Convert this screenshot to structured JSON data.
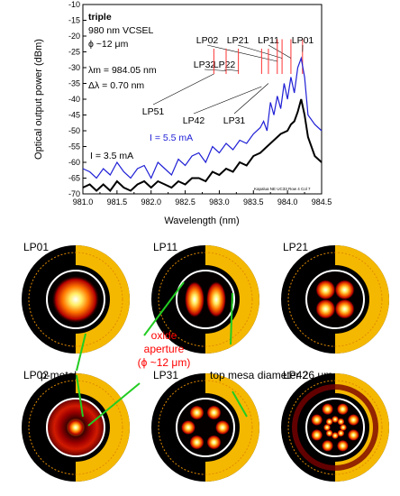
{
  "chart_data": {
    "type": "line",
    "xlabel": "Wavelength (nm)",
    "ylabel": "Optical output power (dBm)",
    "xlim": [
      981.0,
      984.5
    ],
    "ylim": [
      -70,
      -10
    ],
    "x_ticks": [
      "981.0",
      "981.5",
      "982.0",
      "982.5",
      "983.0",
      "983.5",
      "984.0",
      "984.5"
    ],
    "y_ticks": [
      "-10",
      "-15",
      "-20",
      "-25",
      "-30",
      "-35",
      "-40",
      "-45",
      "-50",
      "-55",
      "-60",
      "-65",
      "-70"
    ],
    "grid": false,
    "footnote": "Kapalua NE UC33 Row 4 Col 7",
    "series": [
      {
        "name": "I = 5.5 mA",
        "color": "#1f1fd6",
        "points": [
          [
            981.0,
            -62
          ],
          [
            981.1,
            -63
          ],
          [
            981.2,
            -65
          ],
          [
            981.3,
            -62
          ],
          [
            981.4,
            -64
          ],
          [
            981.5,
            -60
          ],
          [
            981.6,
            -63
          ],
          [
            981.7,
            -65
          ],
          [
            981.8,
            -62
          ],
          [
            981.9,
            -61
          ],
          [
            982.0,
            -65
          ],
          [
            982.1,
            -60
          ],
          [
            982.2,
            -62
          ],
          [
            982.3,
            -64
          ],
          [
            982.4,
            -59
          ],
          [
            982.5,
            -61
          ],
          [
            982.6,
            -58
          ],
          [
            982.7,
            -57
          ],
          [
            982.8,
            -60
          ],
          [
            982.9,
            -55
          ],
          [
            983.0,
            -57
          ],
          [
            983.1,
            -54
          ],
          [
            983.2,
            -56
          ],
          [
            983.3,
            -53
          ],
          [
            983.4,
            -54
          ],
          [
            983.5,
            -51
          ],
          [
            983.6,
            -49
          ],
          [
            983.65,
            -47
          ],
          [
            983.7,
            -50
          ],
          [
            983.75,
            -41
          ],
          [
            983.8,
            -45
          ],
          [
            983.85,
            -39
          ],
          [
            983.9,
            -43
          ],
          [
            983.95,
            -35
          ],
          [
            984.0,
            -40
          ],
          [
            984.05,
            -33
          ],
          [
            984.1,
            -38
          ],
          [
            984.15,
            -30
          ],
          [
            984.2,
            -27
          ],
          [
            984.25,
            -33
          ],
          [
            984.3,
            -45
          ],
          [
            984.4,
            -48
          ],
          [
            984.5,
            -50
          ]
        ]
      },
      {
        "name": "I = 3.5 mA",
        "color": "#000000",
        "points": [
          [
            981.0,
            -68
          ],
          [
            981.1,
            -67
          ],
          [
            981.2,
            -69
          ],
          [
            981.3,
            -67
          ],
          [
            981.4,
            -69
          ],
          [
            981.5,
            -66
          ],
          [
            981.6,
            -68
          ],
          [
            981.7,
            -69
          ],
          [
            981.8,
            -67
          ],
          [
            981.9,
            -66
          ],
          [
            982.0,
            -68
          ],
          [
            982.1,
            -66
          ],
          [
            982.2,
            -67
          ],
          [
            982.3,
            -68
          ],
          [
            982.4,
            -66
          ],
          [
            982.5,
            -67
          ],
          [
            982.6,
            -65
          ],
          [
            982.7,
            -65
          ],
          [
            982.8,
            -66
          ],
          [
            982.9,
            -63
          ],
          [
            983.0,
            -64
          ],
          [
            983.1,
            -62
          ],
          [
            983.2,
            -63
          ],
          [
            983.3,
            -60
          ],
          [
            983.4,
            -61
          ],
          [
            983.5,
            -58
          ],
          [
            983.6,
            -57
          ],
          [
            983.7,
            -55
          ],
          [
            983.8,
            -53
          ],
          [
            983.9,
            -51
          ],
          [
            984.0,
            -50
          ],
          [
            984.05,
            -48
          ],
          [
            984.1,
            -47
          ],
          [
            984.15,
            -44
          ],
          [
            984.2,
            -40
          ],
          [
            984.25,
            -45
          ],
          [
            984.3,
            -52
          ],
          [
            984.4,
            -58
          ],
          [
            984.5,
            -60
          ]
        ]
      }
    ],
    "mode_lines": [
      {
        "label": "LP01",
        "x": 984.22,
        "ymax": -21
      },
      {
        "label": "LP11",
        "x": 984.05,
        "ymax": -21
      },
      {
        "label": "LP21",
        "x": 983.92,
        "ymax": -21
      },
      {
        "label": "LP02",
        "x": 983.85,
        "ymax": -21
      },
      {
        "label": "LP31",
        "x": 983.72,
        "ymax": -24
      },
      {
        "label": "LP42",
        "x": 983.62,
        "ymax": -24
      },
      {
        "label": "LP22",
        "x": 983.28,
        "ymax": -24
      },
      {
        "label": "LP32",
        "x": 983.1,
        "ymax": -24
      },
      {
        "label": "LP51",
        "x": 982.92,
        "ymax": -24
      }
    ],
    "annotations": {
      "triple": "triple",
      "device": "980 nm VCSEL",
      "phi": "ϕ ~12 μm",
      "lambda_m": "λm = 984.05 nm",
      "delta_lambda": "Δλ = 0.70 nm",
      "label_5_5": "I = 5.5 mA",
      "label_3_5": "I = 3.5 mA"
    }
  },
  "lower_figure": {
    "modes": [
      "LP01",
      "LP11",
      "LP21",
      "LP02",
      "LP31",
      "LP42"
    ],
    "pmetal_label": "p-metal",
    "oxide_label_line1": "oxide",
    "oxide_label_line2": "aperture",
    "oxide_label_line3": "(ϕ ~12 μm)",
    "mesa_label": "top mesa diameter 26 μm",
    "colors": {
      "pmetal": "#f5b800",
      "oxide_text": "#ff0000",
      "leader": "#22cc22",
      "mode_line": "#ff3333"
    }
  }
}
